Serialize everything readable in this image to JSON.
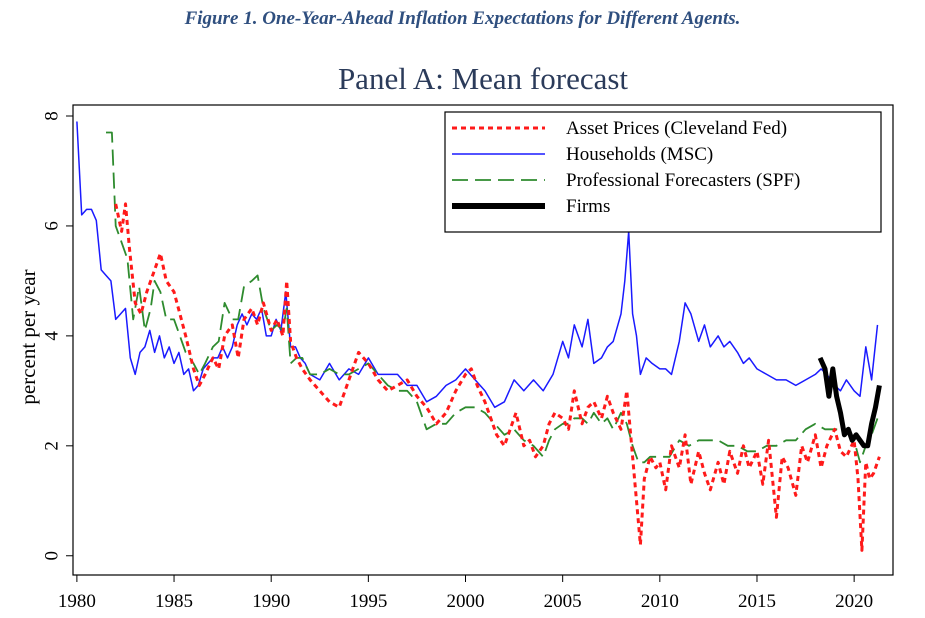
{
  "figure_caption": "Figure 1. One-Year-Ahead Inflation Expectations for Different Agents.",
  "colors": {
    "asset": "#ff1a1a",
    "households": "#1a1aff",
    "spf": "#2e8b2e",
    "firms": "#000000",
    "caption": "#2f4f7f"
  },
  "chart_data": {
    "type": "line",
    "title": "Panel A: Mean forecast",
    "xlabel": "",
    "ylabel": "percent per year",
    "xlim": [
      1979.8,
      2022.0
    ],
    "ylim": [
      -0.35,
      8.2
    ],
    "xticks": [
      1980,
      1985,
      1990,
      1995,
      2000,
      2005,
      2010,
      2015,
      2020
    ],
    "yticks": [
      0,
      2,
      4,
      6,
      8
    ],
    "grid": false,
    "legend_position": "top-right",
    "series": [
      {
        "name": "Asset Prices (Cleveland Fed)",
        "color": "#ff1a1a",
        "style": "dotted",
        "x": [
          1982.0,
          1982.3,
          1982.5,
          1982.7,
          1983.0,
          1983.3,
          1983.6,
          1984.0,
          1984.3,
          1984.6,
          1985.0,
          1985.3,
          1985.6,
          1986.0,
          1986.3,
          1986.6,
          1987.0,
          1987.3,
          1987.6,
          1988.0,
          1988.3,
          1988.6,
          1989.0,
          1989.3,
          1989.6,
          1990.0,
          1990.3,
          1990.6,
          1990.8,
          1991.0,
          1991.3,
          1991.6,
          1992.0,
          1992.5,
          1993.0,
          1993.5,
          1994.0,
          1994.5,
          1995.0,
          1995.5,
          1996.0,
          1996.5,
          1997.0,
          1997.5,
          1998.0,
          1998.5,
          1999.0,
          1999.5,
          2000.0,
          2000.3,
          2000.6,
          2001.0,
          2001.3,
          2001.6,
          2002.0,
          2002.3,
          2002.6,
          2003.0,
          2003.3,
          2003.6,
          2004.0,
          2004.3,
          2004.6,
          2005.0,
          2005.3,
          2005.6,
          2006.0,
          2006.3,
          2006.6,
          2007.0,
          2007.3,
          2007.6,
          2008.0,
          2008.3,
          2008.6,
          2008.8,
          2009.0,
          2009.2,
          2009.5,
          2009.8,
          2010.0,
          2010.3,
          2010.6,
          2011.0,
          2011.3,
          2011.6,
          2012.0,
          2012.3,
          2012.6,
          2013.0,
          2013.3,
          2013.6,
          2014.0,
          2014.3,
          2014.6,
          2015.0,
          2015.3,
          2015.6,
          2016.0,
          2016.3,
          2016.6,
          2017.0,
          2017.3,
          2017.6,
          2018.0,
          2018.3,
          2018.6,
          2019.0,
          2019.3,
          2019.6,
          2020.0,
          2020.2,
          2020.4,
          2020.6,
          2020.8,
          2021.0,
          2021.3
        ],
        "y": [
          6.4,
          5.9,
          6.4,
          5.6,
          4.6,
          4.4,
          4.8,
          5.2,
          5.5,
          5.0,
          4.8,
          4.4,
          4.0,
          3.4,
          3.1,
          3.3,
          3.6,
          3.4,
          4.0,
          4.2,
          3.6,
          4.3,
          4.5,
          4.2,
          4.6,
          4.1,
          4.3,
          4.0,
          5.0,
          3.9,
          3.6,
          3.4,
          3.2,
          3.0,
          2.8,
          2.7,
          3.2,
          3.7,
          3.5,
          3.2,
          3.0,
          3.1,
          3.2,
          2.9,
          2.7,
          2.4,
          2.6,
          3.0,
          3.3,
          3.4,
          3.1,
          2.8,
          2.5,
          2.2,
          2.0,
          2.3,
          2.6,
          2.0,
          2.1,
          1.8,
          2.0,
          2.4,
          2.6,
          2.5,
          2.3,
          3.0,
          2.4,
          2.7,
          2.8,
          2.5,
          2.9,
          2.6,
          2.3,
          3.0,
          1.8,
          1.0,
          0.2,
          1.4,
          1.8,
          1.6,
          1.7,
          1.2,
          2.0,
          1.6,
          2.2,
          1.3,
          1.9,
          1.5,
          1.2,
          1.7,
          1.3,
          1.9,
          1.5,
          2.0,
          1.6,
          1.9,
          1.3,
          2.1,
          0.7,
          1.8,
          1.6,
          1.1,
          2.0,
          1.7,
          2.2,
          1.6,
          2.0,
          2.3,
          1.9,
          1.8,
          2.1,
          1.4,
          0.1,
          1.7,
          1.4,
          1.5,
          1.8
        ]
      },
      {
        "name": "Households (MSC)",
        "color": "#1a1aff",
        "style": "solid",
        "x": [
          1980.0,
          1980.25,
          1980.5,
          1980.75,
          1981.0,
          1981.25,
          1981.5,
          1981.75,
          1982.0,
          1982.25,
          1982.5,
          1982.75,
          1983.0,
          1983.25,
          1983.5,
          1983.75,
          1984.0,
          1984.25,
          1984.5,
          1984.75,
          1985.0,
          1985.25,
          1985.5,
          1985.75,
          1986.0,
          1986.25,
          1986.5,
          1986.75,
          1987.0,
          1987.25,
          1987.5,
          1987.75,
          1988.0,
          1988.25,
          1988.5,
          1988.75,
          1989.0,
          1989.25,
          1989.5,
          1989.75,
          1990.0,
          1990.25,
          1990.5,
          1990.75,
          1991.0,
          1991.25,
          1991.5,
          1991.75,
          1992.0,
          1992.5,
          1993.0,
          1993.5,
          1994.0,
          1994.5,
          1995.0,
          1995.5,
          1996.0,
          1996.5,
          1997.0,
          1997.5,
          1998.0,
          1998.5,
          1999.0,
          1999.5,
          2000.0,
          2000.5,
          2001.0,
          2001.5,
          2002.0,
          2002.5,
          2003.0,
          2003.5,
          2004.0,
          2004.5,
          2005.0,
          2005.3,
          2005.6,
          2006.0,
          2006.3,
          2006.6,
          2007.0,
          2007.3,
          2007.6,
          2008.0,
          2008.2,
          2008.4,
          2008.6,
          2008.8,
          2009.0,
          2009.3,
          2009.6,
          2010.0,
          2010.3,
          2010.6,
          2011.0,
          2011.3,
          2011.6,
          2012.0,
          2012.3,
          2012.6,
          2013.0,
          2013.3,
          2013.6,
          2014.0,
          2014.3,
          2014.6,
          2015.0,
          2015.5,
          2016.0,
          2016.5,
          2017.0,
          2017.5,
          2018.0,
          2018.3,
          2018.6,
          2019.0,
          2019.3,
          2019.6,
          2020.0,
          2020.3,
          2020.6,
          2020.9,
          2021.2
        ],
        "y": [
          7.9,
          6.2,
          6.3,
          6.3,
          6.1,
          5.2,
          5.1,
          5.0,
          4.3,
          4.4,
          4.5,
          3.6,
          3.3,
          3.7,
          3.8,
          4.1,
          3.7,
          4.0,
          3.6,
          3.8,
          3.5,
          3.7,
          3.3,
          3.4,
          3.0,
          3.1,
          3.4,
          3.5,
          3.6,
          3.6,
          3.8,
          3.6,
          3.8,
          4.2,
          4.4,
          4.2,
          4.4,
          4.3,
          4.5,
          4.0,
          4.0,
          4.3,
          4.1,
          4.8,
          3.8,
          3.8,
          3.6,
          3.5,
          3.3,
          3.2,
          3.5,
          3.2,
          3.4,
          3.3,
          3.6,
          3.3,
          3.3,
          3.3,
          3.1,
          3.1,
          2.8,
          2.9,
          3.1,
          3.2,
          3.4,
          3.2,
          3.0,
          2.7,
          2.8,
          3.2,
          3.0,
          3.2,
          3.0,
          3.3,
          3.9,
          3.6,
          4.2,
          3.8,
          4.3,
          3.5,
          3.6,
          3.8,
          3.9,
          4.4,
          5.0,
          5.9,
          4.4,
          4.0,
          3.3,
          3.6,
          3.5,
          3.4,
          3.4,
          3.3,
          3.9,
          4.6,
          4.4,
          3.9,
          4.2,
          3.8,
          4.0,
          3.8,
          3.9,
          3.7,
          3.5,
          3.6,
          3.4,
          3.3,
          3.2,
          3.2,
          3.1,
          3.2,
          3.3,
          3.4,
          3.3,
          3.1,
          3.0,
          3.2,
          3.0,
          2.9,
          3.8,
          3.2,
          4.2
        ]
      },
      {
        "name": "Professional Forecasters (SPF)",
        "color": "#2e8b2e",
        "style": "dashed",
        "x": [
          1981.5,
          1981.8,
          1982.0,
          1982.3,
          1982.6,
          1982.9,
          1983.2,
          1983.5,
          1983.8,
          1984.0,
          1984.3,
          1984.6,
          1985.0,
          1985.3,
          1985.6,
          1986.0,
          1986.3,
          1986.6,
          1987.0,
          1987.3,
          1987.6,
          1988.0,
          1988.3,
          1988.6,
          1989.0,
          1989.3,
          1989.6,
          1990.0,
          1990.3,
          1990.6,
          1990.8,
          1991.0,
          1991.3,
          1991.6,
          1992.0,
          1992.5,
          1993.0,
          1993.5,
          1994.0,
          1994.5,
          1995.0,
          1995.5,
          1996.0,
          1996.5,
          1997.0,
          1997.5,
          1998.0,
          1998.5,
          1999.0,
          1999.5,
          2000.0,
          2000.5,
          2001.0,
          2001.5,
          2002.0,
          2002.5,
          2003.0,
          2003.5,
          2004.0,
          2004.3,
          2004.6,
          2005.0,
          2005.3,
          2005.6,
          2006.0,
          2006.3,
          2006.6,
          2007.0,
          2007.3,
          2007.6,
          2008.0,
          2008.3,
          2008.6,
          2008.9,
          2009.2,
          2009.5,
          2010.0,
          2010.5,
          2011.0,
          2011.5,
          2012.0,
          2012.5,
          2013.0,
          2013.5,
          2014.0,
          2014.5,
          2015.0,
          2015.5,
          2016.0,
          2016.5,
          2017.0,
          2017.5,
          2018.0,
          2018.5,
          2019.0,
          2019.5,
          2020.0,
          2020.3,
          2020.6,
          2020.9,
          2021.2
        ],
        "y": [
          7.7,
          7.7,
          6.0,
          5.7,
          5.4,
          4.3,
          4.9,
          4.1,
          4.5,
          5.0,
          4.8,
          4.3,
          4.3,
          4.0,
          3.7,
          3.5,
          3.3,
          3.5,
          3.8,
          3.9,
          4.6,
          4.3,
          4.3,
          4.9,
          5.0,
          5.1,
          4.5,
          4.1,
          4.2,
          4.1,
          4.5,
          3.5,
          3.6,
          3.6,
          3.3,
          3.3,
          3.4,
          3.3,
          3.3,
          3.4,
          3.5,
          3.3,
          3.1,
          3.0,
          3.0,
          2.8,
          2.3,
          2.4,
          2.4,
          2.6,
          2.7,
          2.7,
          2.6,
          2.4,
          2.2,
          2.3,
          2.1,
          2.0,
          1.8,
          2.1,
          2.3,
          2.4,
          2.4,
          2.5,
          2.5,
          2.4,
          2.6,
          2.4,
          2.5,
          2.3,
          2.6,
          2.4,
          2.0,
          1.7,
          1.7,
          1.8,
          1.8,
          1.8,
          2.1,
          2.0,
          2.1,
          2.1,
          2.1,
          2.0,
          2.0,
          1.9,
          1.9,
          2.0,
          2.0,
          2.1,
          2.1,
          2.3,
          2.4,
          2.3,
          2.3,
          2.3,
          2.1,
          1.7,
          2.0,
          2.2,
          2.5
        ]
      },
      {
        "name": "Firms",
        "color": "#000000",
        "style": "thick",
        "x": [
          2018.25,
          2018.5,
          2018.7,
          2018.9,
          2019.1,
          2019.3,
          2019.5,
          2019.7,
          2019.9,
          2020.1,
          2020.3,
          2020.5,
          2020.7,
          2020.9,
          2021.1,
          2021.3
        ],
        "y": [
          3.6,
          3.4,
          2.9,
          3.4,
          2.9,
          2.6,
          2.2,
          2.3,
          2.1,
          2.2,
          2.1,
          2.0,
          2.0,
          2.4,
          2.7,
          3.1
        ]
      }
    ]
  }
}
